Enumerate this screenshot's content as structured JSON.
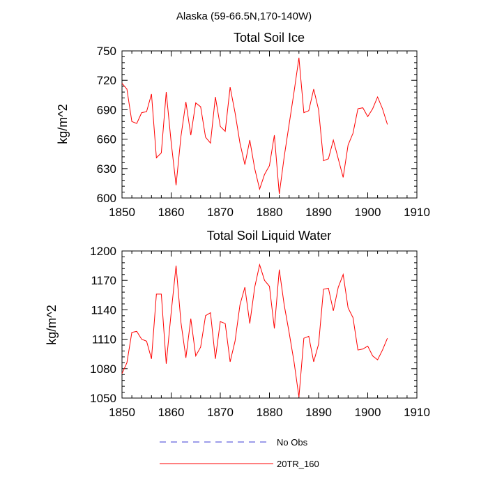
{
  "figure_title": "Alaska (59-66.5N,170-140W)",
  "legend": [
    {
      "label": "No Obs",
      "color": "#3b3bd6",
      "style": "dashed"
    },
    {
      "label": "20TR_160",
      "color": "#ff0000",
      "style": "solid"
    }
  ],
  "chart_data": [
    {
      "type": "line",
      "title": "Total Soil Ice",
      "xlabel": "",
      "ylabel": "kg/m^2",
      "xlim": [
        1850,
        1910
      ],
      "ylim": [
        600,
        750
      ],
      "xticks": [
        1850,
        1860,
        1870,
        1880,
        1890,
        1900,
        1910
      ],
      "yticks": [
        600,
        630,
        660,
        690,
        720,
        750
      ],
      "series": [
        {
          "name": "20TR_160",
          "color": "#ff0000",
          "x": [
            1850,
            1851,
            1852,
            1853,
            1854,
            1855,
            1856,
            1857,
            1858,
            1859,
            1860,
            1861,
            1862,
            1863,
            1864,
            1865,
            1866,
            1867,
            1868,
            1869,
            1870,
            1871,
            1872,
            1873,
            1874,
            1875,
            1876,
            1877,
            1878,
            1879,
            1880,
            1881,
            1882,
            1883,
            1884,
            1885,
            1886,
            1887,
            1888,
            1889,
            1890,
            1891,
            1892,
            1893,
            1894,
            1895,
            1896,
            1897,
            1898,
            1899,
            1900,
            1901,
            1902,
            1903,
            1904
          ],
          "y": [
            717,
            711,
            678,
            676,
            687,
            688,
            706,
            641,
            646,
            708,
            657,
            613,
            663,
            698,
            664,
            697,
            693,
            662,
            656,
            703,
            673,
            668,
            713,
            687,
            656,
            634,
            659,
            630,
            609,
            624,
            633,
            664,
            604,
            642,
            675,
            708,
            743,
            687,
            689,
            711,
            690,
            638,
            640,
            659,
            640,
            621,
            654,
            666,
            691,
            692,
            683,
            691,
            703,
            691,
            675
          ]
        }
      ]
    },
    {
      "type": "line",
      "title": "Total Soil Liquid Water",
      "xlabel": "",
      "ylabel": "kg/m^2",
      "xlim": [
        1850,
        1910
      ],
      "ylim": [
        1050,
        1200
      ],
      "xticks": [
        1850,
        1860,
        1870,
        1880,
        1890,
        1900,
        1910
      ],
      "yticks": [
        1050,
        1080,
        1110,
        1140,
        1170,
        1200
      ],
      "series": [
        {
          "name": "20TR_160",
          "color": "#ff0000",
          "x": [
            1850,
            1851,
            1852,
            1853,
            1854,
            1855,
            1856,
            1857,
            1858,
            1859,
            1860,
            1861,
            1862,
            1863,
            1864,
            1865,
            1866,
            1867,
            1868,
            1869,
            1870,
            1871,
            1872,
            1873,
            1874,
            1875,
            1876,
            1877,
            1878,
            1879,
            1880,
            1881,
            1882,
            1883,
            1884,
            1885,
            1886,
            1887,
            1888,
            1889,
            1890,
            1891,
            1892,
            1893,
            1894,
            1895,
            1896,
            1897,
            1898,
            1899,
            1900,
            1901,
            1902,
            1903,
            1904
          ],
          "y": [
            1075,
            1086,
            1117,
            1118,
            1110,
            1108,
            1090,
            1156,
            1156,
            1085,
            1137,
            1185,
            1127,
            1091,
            1131,
            1093,
            1102,
            1134,
            1137,
            1090,
            1128,
            1126,
            1087,
            1108,
            1145,
            1163,
            1126,
            1163,
            1186,
            1170,
            1164,
            1121,
            1181,
            1145,
            1117,
            1087,
            1051,
            1111,
            1113,
            1087,
            1105,
            1161,
            1162,
            1139,
            1163,
            1176,
            1142,
            1132,
            1099,
            1100,
            1103,
            1093,
            1089,
            1099,
            1111
          ]
        }
      ]
    }
  ]
}
